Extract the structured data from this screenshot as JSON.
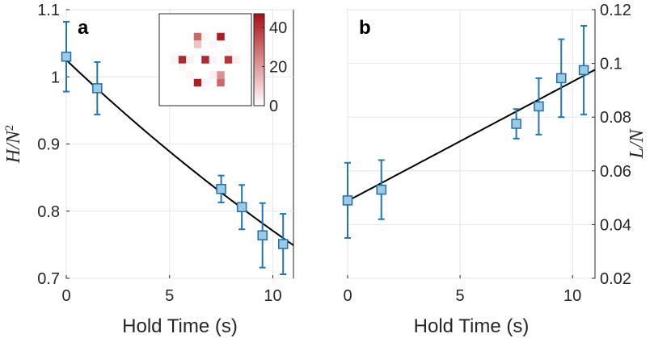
{
  "chart_data": [
    {
      "type": "scatter",
      "panel_label": "a",
      "xlabel": "Hold Time (s)",
      "ylabel_base": "H/N",
      "ylabel_exp": "2",
      "xlim": [
        0,
        11
      ],
      "ylim": [
        0.7,
        1.1
      ],
      "xticks": [
        0,
        5,
        10
      ],
      "yticks": [
        0.7,
        0.8,
        0.9,
        1,
        1.1
      ],
      "ytick_labels": [
        "0.7",
        "0.8",
        "0.9",
        "1",
        "1.1"
      ],
      "y_axis_side": "left",
      "points": [
        {
          "x": 0,
          "y": 1.03,
          "err": 0.052
        },
        {
          "x": 1.5,
          "y": 0.983,
          "err": 0.039
        },
        {
          "x": 7.5,
          "y": 0.833,
          "err": 0.02
        },
        {
          "x": 8.5,
          "y": 0.806,
          "err": 0.033
        },
        {
          "x": 9.5,
          "y": 0.764,
          "err": 0.048
        },
        {
          "x": 10.5,
          "y": 0.751,
          "err": 0.045
        }
      ],
      "fit": {
        "kind": "exponential",
        "a": 1.025,
        "b": 0.0285
      },
      "inset": {
        "type": "heatmap",
        "colorbar_ticks": [
          0,
          20,
          40
        ],
        "colorbar_range": [
          0,
          47
        ],
        "pixels": [
          {
            "col": 3,
            "row": 2,
            "v": 30
          },
          {
            "col": 3,
            "row": 3,
            "v": 12
          },
          {
            "col": 6,
            "row": 2,
            "v": 44
          },
          {
            "col": 1,
            "row": 5,
            "v": 42
          },
          {
            "col": 2,
            "row": 5,
            "v": 3
          },
          {
            "col": 4,
            "row": 5,
            "v": 42
          },
          {
            "col": 5,
            "row": 5,
            "v": 2
          },
          {
            "col": 7,
            "row": 5,
            "v": 40
          },
          {
            "col": 8,
            "row": 5,
            "v": 3
          },
          {
            "col": 0,
            "row": 5,
            "v": 2
          },
          {
            "col": 1,
            "row": 6,
            "v": 2
          },
          {
            "col": 7,
            "row": 4,
            "v": 2
          },
          {
            "col": 3,
            "row": 8,
            "v": 44
          },
          {
            "col": 6,
            "row": 7,
            "v": 22
          },
          {
            "col": 6,
            "row": 8,
            "v": 30
          },
          {
            "col": 2,
            "row": 7,
            "v": 2
          },
          {
            "col": 4,
            "row": 8,
            "v": 2
          },
          {
            "col": 5,
            "row": 7,
            "v": 3
          },
          {
            "col": 4,
            "row": 2,
            "v": 2
          },
          {
            "col": 5,
            "row": 3,
            "v": 2
          }
        ]
      }
    },
    {
      "type": "scatter",
      "panel_label": "b",
      "xlabel": "Hold Time (s)",
      "ylabel": "L/N",
      "xlim": [
        0,
        11
      ],
      "ylim": [
        0.02,
        0.12
      ],
      "xticks": [
        0,
        5,
        10
      ],
      "yticks": [
        0.02,
        0.04,
        0.06,
        0.08,
        0.1,
        0.12
      ],
      "ytick_labels": [
        "0.02",
        "0.04",
        "0.06",
        "0.08",
        "0.1",
        "0.12"
      ],
      "y_axis_side": "right",
      "points": [
        {
          "x": 0,
          "y": 0.049,
          "err": 0.014
        },
        {
          "x": 1.5,
          "y": 0.053,
          "err": 0.011
        },
        {
          "x": 7.5,
          "y": 0.0775,
          "err": 0.0055
        },
        {
          "x": 8.5,
          "y": 0.084,
          "err": 0.0105
        },
        {
          "x": 9.5,
          "y": 0.0945,
          "err": 0.0145
        },
        {
          "x": 10.5,
          "y": 0.0975,
          "err": 0.0165
        }
      ],
      "fit": {
        "kind": "linear",
        "intercept": 0.0488,
        "slope": 0.00444
      }
    }
  ]
}
